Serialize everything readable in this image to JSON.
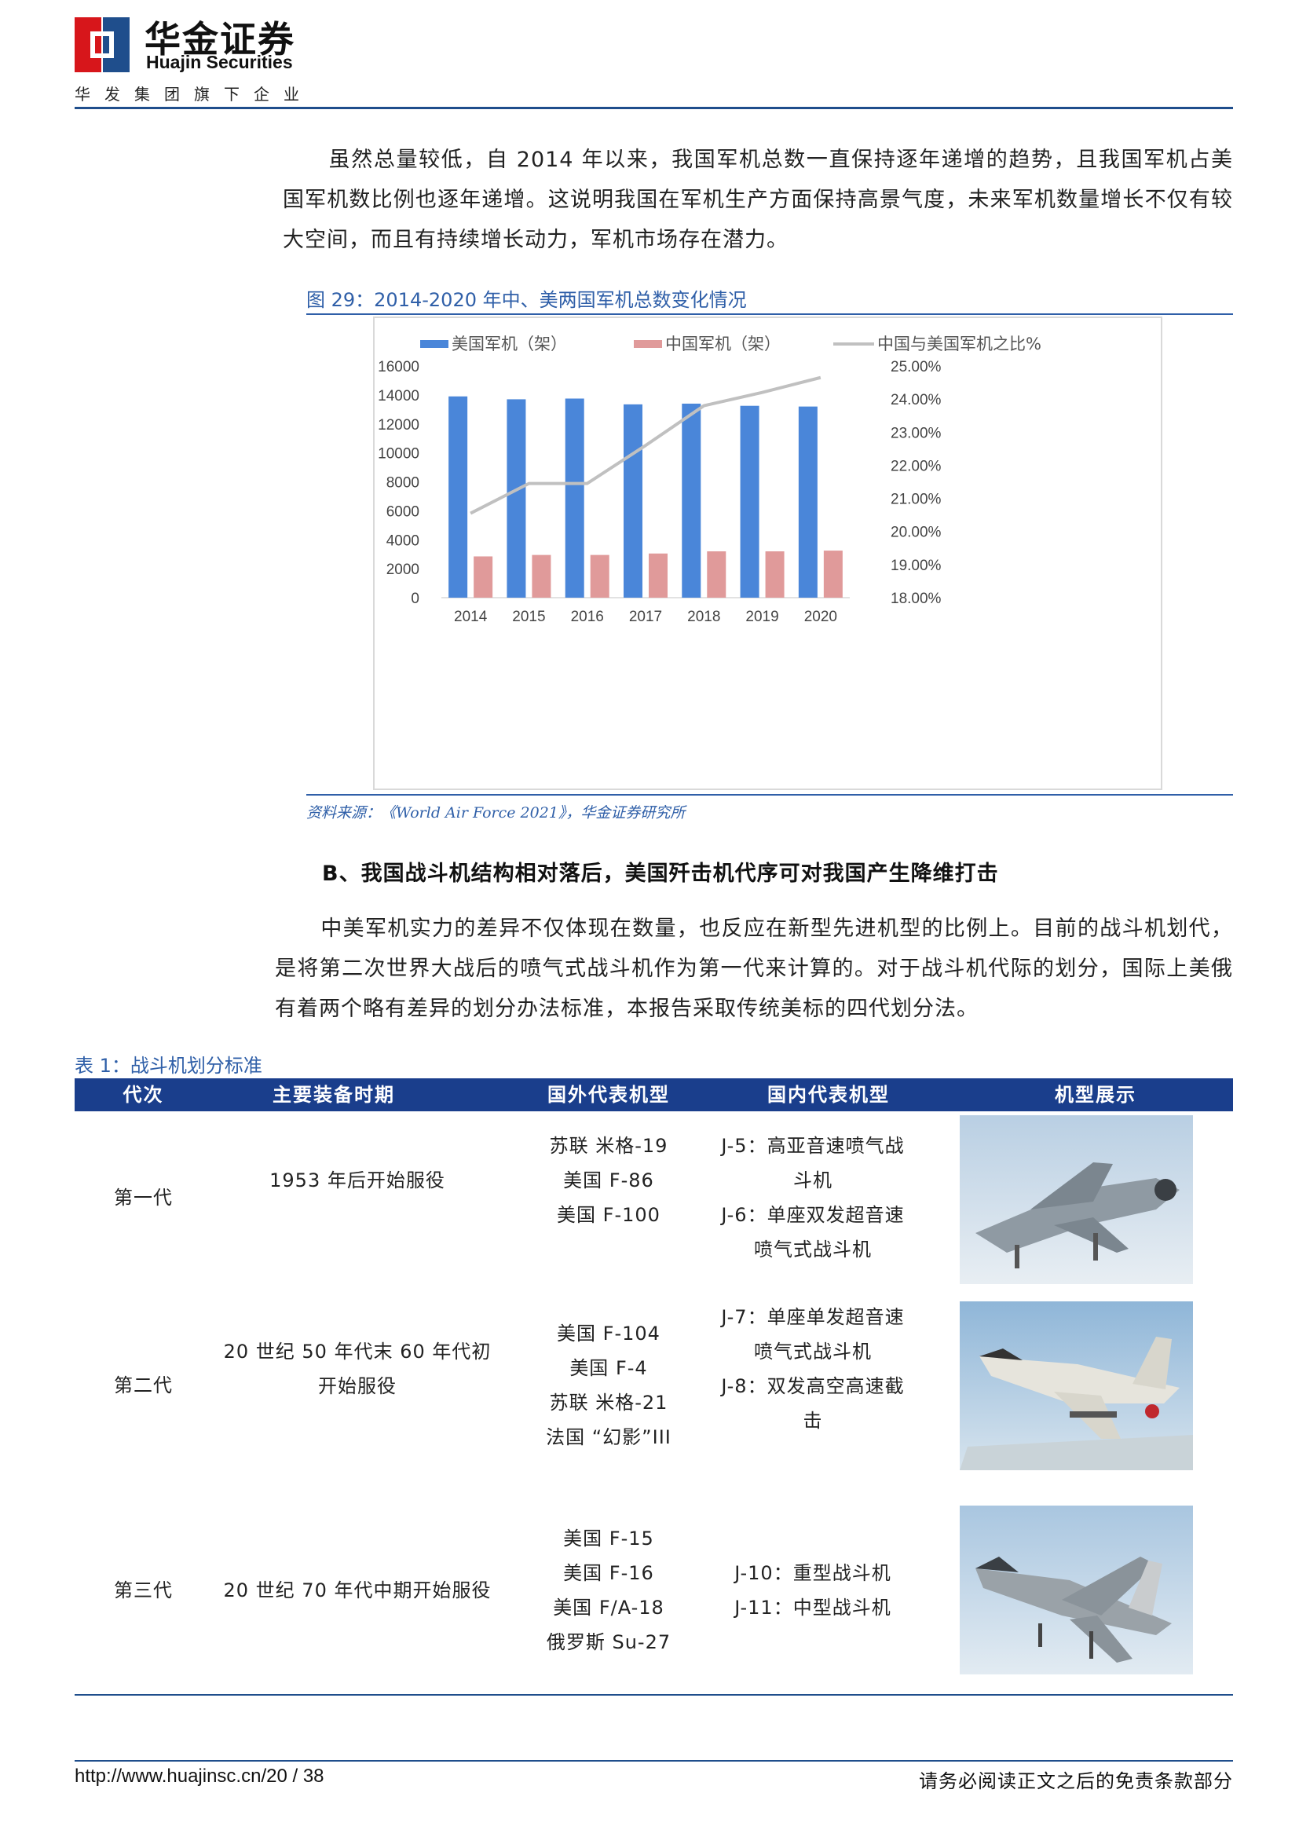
{
  "header": {
    "brand_cn": "华金证券",
    "brand_en": "Huajin Securities",
    "tagline": "华发集团旗下企业",
    "logo_colors": {
      "red": "#d7161b",
      "blue": "#1f4e8c"
    }
  },
  "intro_paragraph": "虽然总量较低，自 2014 年以来，我国军机总数一直保持逐年递增的趋势，且我国军机占美国军机数比例也逐年递增。这说明我国在军机生产方面保持高景气度，未来军机数量增长不仅有较大空间，而且有持续增长动力，军机市场存在潜力。",
  "figure": {
    "title": "图 29：2014-2020 年中、美两国军机总数变化情况",
    "source": "资料来源：《World Air Force 2021》，华金证券研究所"
  },
  "chart_data": {
    "type": "bar",
    "categories": [
      "2014",
      "2015",
      "2016",
      "2017",
      "2018",
      "2019",
      "2020"
    ],
    "series": [
      {
        "name": "美国军机（架）",
        "type": "bar",
        "axis": "left",
        "color": "#4a86d9",
        "values": [
          13900,
          13700,
          13750,
          13350,
          13400,
          13250,
          13200
        ]
      },
      {
        "name": "中国军机（架）",
        "type": "bar",
        "axis": "left",
        "color": "#e09a9a",
        "values": [
          2850,
          2950,
          2950,
          3050,
          3200,
          3200,
          3250
        ]
      },
      {
        "name": "中国与美国军机之比%",
        "type": "line",
        "axis": "right",
        "color": "#c0c0c0",
        "values": [
          20.55,
          21.45,
          21.45,
          22.6,
          23.8,
          24.2,
          24.65
        ]
      }
    ],
    "y_left": {
      "range": [
        0,
        16000
      ],
      "ticks": [
        "0",
        "2000",
        "4000",
        "6000",
        "8000",
        "10000",
        "12000",
        "14000",
        "16000"
      ]
    },
    "y_right": {
      "range": [
        18,
        25
      ],
      "ticks": [
        "18.00%",
        "19.00%",
        "20.00%",
        "21.00%",
        "22.00%",
        "23.00%",
        "24.00%",
        "25.00%"
      ]
    },
    "legend": "top",
    "grid": false
  },
  "section_b": {
    "title": "B、我国战斗机结构相对落后，美国歼击机代序可对我国产生降维打击",
    "paragraph": "中美军机实力的差异不仅体现在数量，也反应在新型先进机型的比例上。目前的战斗机划代，是将第二次世界大战后的喷气式战斗机作为第一代来计算的。对于战斗机代际的划分，国际上美俄有着两个略有差异的划分办法标准，本报告采取传统美标的四代划分法。"
  },
  "table": {
    "title": "表 1：战斗机划分标准",
    "headers": [
      "代次",
      "主要装备时期",
      "国外代表机型",
      "国内代表机型",
      "机型展示"
    ],
    "rows": [
      {
        "generation": "第一代",
        "period": [
          "1953 年后开始服役"
        ],
        "foreign": [
          "苏联 米格-19",
          "美国 F-86",
          "美国 F-100"
        ],
        "domestic": [
          "J-5：高亚音速喷气战",
          "斗机",
          "J-6：单座双发超音速",
          "喷气式战斗机"
        ]
      },
      {
        "generation": "第二代",
        "period": [
          "20 世纪 50 年代末 60 年代初",
          "开始服役"
        ],
        "foreign": [
          "美国 F-104",
          "美国 F-4",
          "苏联 米格-21",
          "法国 “幻影”III"
        ],
        "domestic": [
          "J-7：单座单发超音速",
          "喷气式战斗机",
          "J-8：双发高空高速截",
          "击"
        ]
      },
      {
        "generation": "第三代",
        "period": [
          "20 世纪 70 年代中期开始服役"
        ],
        "foreign": [
          "美国 F-15",
          "美国 F-16",
          "美国 F/A-18",
          "俄罗斯 Su-27"
        ],
        "domestic": [
          "J-10：重型战斗机",
          "J-11：中型战斗机"
        ]
      }
    ]
  },
  "footer": {
    "url_page": "http://www.huajinsc.cn/20 / 38",
    "disclaimer": "请务必阅读正文之后的免责条款部分"
  }
}
